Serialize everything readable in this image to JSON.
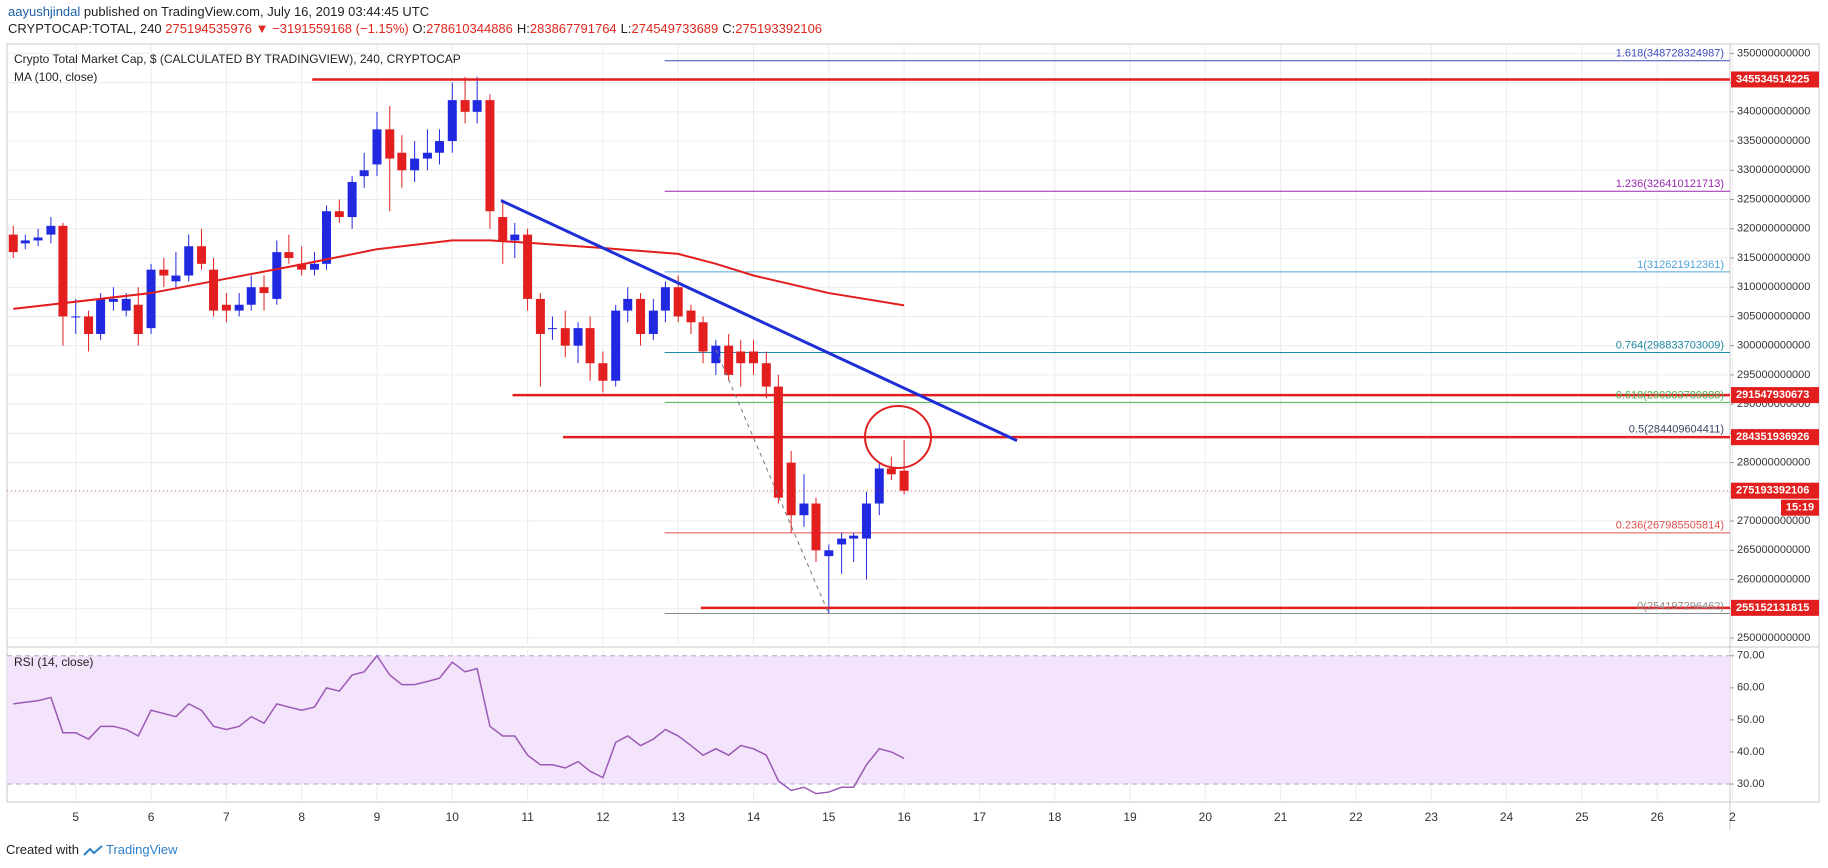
{
  "header": {
    "author": "aayushjindal",
    "published": "published on TradingView.com, July 16, 2019 03:44:45 UTC",
    "symbol": "CRYPTOCAP:TOTAL, 240",
    "last": "275194535976",
    "change": "▼ −3191559168 (−1.15%)",
    "ohlc": [
      {
        "label": "O:",
        "value": "278610344886"
      },
      {
        "label": "H:",
        "value": "283867791764"
      },
      {
        "label": "L:",
        "value": "274549733689"
      },
      {
        "label": "C:",
        "value": "275193392106"
      }
    ]
  },
  "chart_data": {
    "type": "candlestick",
    "title": "Crypto Total Market Cap, $ (CALCULATED BY TRADINGVIEW), 240, CRYPTOCAP",
    "x": [
      4.17,
      4.33,
      4.5,
      4.67,
      4.83,
      5,
      5.17,
      5.33,
      5.5,
      5.67,
      5.83,
      6,
      6.17,
      6.33,
      6.5,
      6.67,
      6.83,
      7,
      7.17,
      7.33,
      7.5,
      7.67,
      7.83,
      8,
      8.17,
      8.33,
      8.5,
      8.67,
      8.83,
      9,
      9.17,
      9.33,
      9.5,
      9.67,
      9.83,
      10,
      10.17,
      10.33,
      10.5,
      10.67,
      10.83,
      11,
      11.17,
      11.33,
      11.5,
      11.67,
      11.83,
      12,
      12.17,
      12.33,
      12.5,
      12.67,
      12.83,
      13,
      13.17,
      13.33,
      13.5,
      13.67,
      13.83,
      14,
      14.17,
      14.33,
      14.5,
      14.67,
      14.83,
      15,
      15.17,
      15.33,
      15.5,
      15.67,
      15.83,
      16
    ],
    "open": [
      319000000000,
      317500000000,
      318000000000,
      319000000000,
      320500000000,
      305000000000,
      305000000000,
      302000000000,
      307500000000,
      306000000000,
      307000000000,
      303000000000,
      313000000000,
      311000000000,
      312000000000,
      317000000000,
      313000000000,
      307000000000,
      306000000000,
      307000000000,
      310000000000,
      308000000000,
      316000000000,
      314000000000,
      313000000000,
      314000000000,
      323000000000,
      322000000000,
      329000000000,
      331000000000,
      337000000000,
      333000000000,
      330000000000,
      332000000000,
      333000000000,
      335000000000,
      342000000000,
      340000000000,
      342000000000,
      322000000000,
      318000000000,
      319000000000,
      308000000000,
      303000000000,
      303000000000,
      300000000000,
      303000000000,
      297000000000,
      294000000000,
      306000000000,
      308000000000,
      302000000000,
      306000000000,
      310000000000,
      306000000000,
      304000000000,
      297000000000,
      300000000000,
      299000000000,
      299000000000,
      297000000000,
      293000000000,
      280000000000,
      271000000000,
      273000000000,
      264000000000,
      266000000000,
      267000000000,
      267000000000,
      273000000000,
      279000000000,
      278610344886
    ],
    "high": [
      320500000000,
      319000000000,
      320000000000,
      322000000000,
      321000000000,
      308000000000,
      306000000000,
      309000000000,
      310000000000,
      309000000000,
      310000000000,
      314000000000,
      315000000000,
      316000000000,
      319000000000,
      320000000000,
      315000000000,
      309000000000,
      309000000000,
      312000000000,
      312000000000,
      318000000000,
      319000000000,
      317000000000,
      316000000000,
      324000000000,
      325000000000,
      329000000000,
      333000000000,
      340000000000,
      341000000000,
      336000000000,
      335000000000,
      337000000000,
      337000000000,
      345000000000,
      346000000000,
      346000000000,
      343000000000,
      325000000000,
      321000000000,
      320000000000,
      309000000000,
      305000000000,
      306000000000,
      304000000000,
      305000000000,
      299000000000,
      307000000000,
      310000000000,
      309000000000,
      308000000000,
      311000000000,
      312000000000,
      307000000000,
      305000000000,
      301000000000,
      302000000000,
      301000000000,
      301000000000,
      299000000000,
      295000000000,
      282000000000,
      278000000000,
      274000000000,
      266000000000,
      268000000000,
      268000000000,
      275000000000,
      280000000000,
      281000000000,
      283867791764
    ],
    "low": [
      315000000000,
      316500000000,
      317000000000,
      317500000000,
      300000000000,
      302000000000,
      299000000000,
      301000000000,
      306000000000,
      305000000000,
      300000000000,
      302000000000,
      310000000000,
      310000000000,
      311000000000,
      313000000000,
      305000000000,
      304000000000,
      305000000000,
      306000000000,
      306000000000,
      307000000000,
      314000000000,
      312000000000,
      312000000000,
      313000000000,
      321000000000,
      320000000000,
      327000000000,
      329000000000,
      323000000000,
      327000000000,
      328000000000,
      330000000000,
      331000000000,
      333000000000,
      338000000000,
      338000000000,
      320000000000,
      314000000000,
      315000000000,
      306000000000,
      293000000000,
      301000000000,
      298000000000,
      297000000000,
      294000000000,
      292000000000,
      293000000000,
      304000000000,
      300000000000,
      301000000000,
      304000000000,
      304000000000,
      302000000000,
      297000000000,
      295000000000,
      294000000000,
      293000000000,
      295000000000,
      291000000000,
      273000000000,
      268000000000,
      269000000000,
      263000000000,
      254200000000,
      261000000000,
      263000000000,
      260000000000,
      271000000000,
      277000000000,
      274549733689
    ],
    "close": [
      316000000000,
      318000000000,
      318500000000,
      320500000000,
      305000000000,
      305000000000,
      302000000000,
      308000000000,
      308000000000,
      308000000000,
      302000000000,
      313000000000,
      312000000000,
      312000000000,
      317000000000,
      314000000000,
      306000000000,
      306000000000,
      307000000000,
      310000000000,
      309000000000,
      316000000000,
      315000000000,
      313000000000,
      314000000000,
      323000000000,
      322000000000,
      328000000000,
      330000000000,
      337000000000,
      332000000000,
      330000000000,
      332000000000,
      333000000000,
      335000000000,
      342000000000,
      340000000000,
      342000000000,
      323000000000,
      318000000000,
      319000000000,
      308000000000,
      302000000000,
      303000000000,
      300000000000,
      303000000000,
      297000000000,
      294000000000,
      306000000000,
      308000000000,
      302000000000,
      306000000000,
      310000000000,
      305000000000,
      304000000000,
      299000000000,
      300000000000,
      295000000000,
      297000000000,
      297000000000,
      293000000000,
      274000000000,
      271000000000,
      273000000000,
      265000000000,
      265000000000,
      267000000000,
      267500000000,
      273000000000,
      279000000000,
      278000000000,
      275193392106
    ],
    "colors": {
      "up": "#2029e0",
      "down": "#e21e1e"
    },
    "ma": {
      "name": "MA (100, close)",
      "color": "#e31d1d",
      "x": [
        4.17,
        6,
        8,
        9,
        10,
        10.5,
        11,
        12,
        13,
        13.5,
        14,
        15,
        16
      ],
      "values": [
        306300000000,
        309000000000,
        313900000000,
        316500000000,
        318000000000,
        318000000000,
        317600000000,
        316700000000,
        315700000000,
        314000000000,
        312000000000,
        309000000000,
        306900000000
      ]
    },
    "current": {
      "countdown": "15:19"
    },
    "levels": [
      {
        "value": 345534514225,
        "from": 8.14
      },
      {
        "value": 291547930673,
        "from": 10.8
      },
      {
        "value": 284351936926,
        "from": 11.47
      },
      {
        "value": 255152131815,
        "from": 13.3
      }
    ],
    "fib": {
      "from": 12.82,
      "levels": [
        {
          "label": "1.618(348728324987)",
          "value": 348728324987,
          "color": "#3d4fbf"
        },
        {
          "label": "1.236(326410121713)",
          "value": 326410121713,
          "color": "#9c27b0"
        },
        {
          "label": "1(312621912361)",
          "value": 312621912361,
          "color": "#4fa3d8"
        },
        {
          "label": "0.764(298833703009)",
          "value": 298833703009,
          "color": "#1f8aa3"
        },
        {
          "label": "0.618(290303789888)",
          "value": 290303789888,
          "color": "#4caf50"
        },
        {
          "label": "0.5(284409604411)",
          "value": 284409604411,
          "color": "#3a4560"
        },
        {
          "label": "0.236(267985505814)",
          "value": 267985505814,
          "color": "#e0504c"
        },
        {
          "label": "0(254197296462)",
          "value": 254197296462,
          "color": "#8c8c8c"
        }
      ]
    },
    "xlim": [
      4.087,
      26.967
    ],
    "xticks": [
      5,
      6,
      7,
      8,
      9,
      10,
      11,
      12,
      13,
      14,
      15,
      16,
      17,
      18,
      19,
      20,
      21,
      22,
      23,
      24,
      25,
      26,
      {
        "value": 27,
        "label": "2"
      }
    ],
    "ylim": [
      248800000000,
      351600000000
    ],
    "yticks": [
      250000000000,
      255000000000,
      260000000000,
      265000000000,
      270000000000,
      275000000000,
      280000000000,
      285000000000,
      290000000000,
      295000000000,
      300000000000,
      305000000000,
      310000000000,
      315000000000,
      320000000000,
      325000000000,
      330000000000,
      335000000000,
      340000000000,
      345000000000,
      350000000000
    ],
    "grid": true,
    "rsi": {
      "name": "RSI (14, close)",
      "color": "#9b59b6",
      "band_color": "#f3e3fb",
      "values": [
        55,
        55.5,
        56,
        57,
        46,
        46,
        44,
        48,
        48,
        47,
        45,
        53,
        52,
        51,
        55,
        53,
        48,
        47,
        48,
        51,
        49,
        55,
        54,
        53,
        54,
        60,
        59,
        64,
        65,
        70,
        64,
        61,
        61,
        62,
        63,
        68,
        65,
        66,
        48,
        45,
        45,
        39,
        36,
        36,
        35,
        37,
        34,
        32,
        43,
        45,
        42,
        44,
        47,
        45,
        42,
        39,
        41,
        39,
        42,
        41,
        39,
        31,
        28,
        29,
        27,
        27.5,
        29,
        29,
        36,
        41,
        40,
        38
      ],
      "ylim": [
        24.4,
        71.8
      ],
      "yticks": [
        {
          "value": 30,
          "label": "30.00"
        },
        {
          "value": 40,
          "label": "40.00"
        },
        {
          "value": 50,
          "label": "50.00"
        },
        {
          "value": 60,
          "label": "60.00"
        },
        {
          "value": 70,
          "label": "70.00"
        }
      ],
      "band": [
        30,
        70
      ]
    }
  },
  "footer": {
    "created": "Created with",
    "brand": "TradingView"
  }
}
